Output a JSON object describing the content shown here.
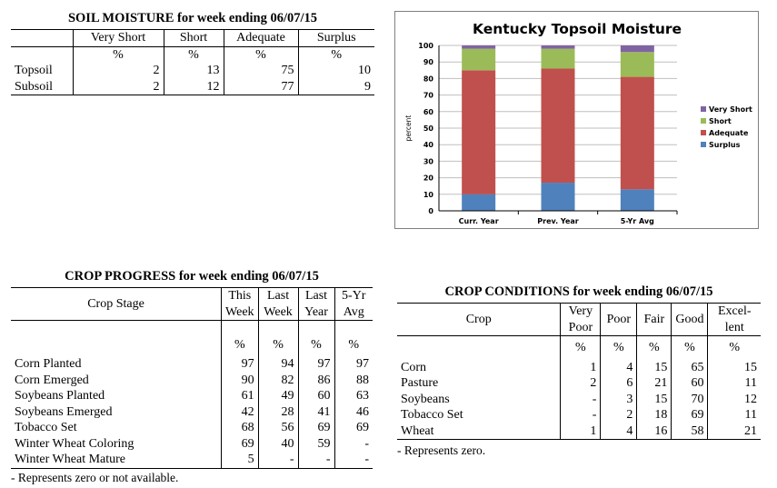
{
  "soil": {
    "title": "SOIL MOISTURE for week ending 06/07/15",
    "headers": [
      "Very Short",
      "Short",
      "Adequate",
      "Surplus"
    ],
    "unit": "%",
    "rows": [
      {
        "label": "Topsoil",
        "values": [
          "2",
          "13",
          "75",
          "10"
        ]
      },
      {
        "label": "Subsoil",
        "values": [
          "2",
          "12",
          "77",
          "9"
        ]
      }
    ]
  },
  "progress": {
    "title": "CROP PROGRESS for week ending 06/07/15",
    "stage_header": "Crop Stage",
    "headers": [
      [
        "This",
        "Week"
      ],
      [
        "Last",
        "Week"
      ],
      [
        "Last",
        "Year"
      ],
      [
        "5-Yr",
        "Avg"
      ]
    ],
    "unit": "%",
    "rows": [
      {
        "label": "Corn Planted",
        "values": [
          "97",
          "94",
          "97",
          "97"
        ]
      },
      {
        "label": "Corn Emerged",
        "values": [
          "90",
          "82",
          "86",
          "88"
        ]
      },
      {
        "label": "Soybeans Planted",
        "values": [
          "61",
          "49",
          "60",
          "63"
        ]
      },
      {
        "label": "Soybeans Emerged",
        "values": [
          "42",
          "28",
          "41",
          "46"
        ]
      },
      {
        "label": "Tobacco Set",
        "values": [
          "68",
          "56",
          "69",
          "69"
        ]
      },
      {
        "label": "Winter Wheat Coloring",
        "values": [
          "69",
          "40",
          "59",
          "-"
        ]
      },
      {
        "label": "Winter Wheat Mature",
        "values": [
          "5",
          "-",
          "-",
          "-"
        ]
      }
    ],
    "note": "- Represents zero or not available."
  },
  "conditions": {
    "title": "CROP CONDITIONS for week ending 06/07/15",
    "crop_header": "Crop",
    "headers": [
      [
        "Very",
        "Poor"
      ],
      [
        "Poor"
      ],
      [
        "Fair"
      ],
      [
        "Good"
      ],
      [
        "Excel-",
        "lent"
      ]
    ],
    "unit": "%",
    "rows": [
      {
        "label": "Corn",
        "values": [
          "1",
          "4",
          "15",
          "65",
          "15"
        ]
      },
      {
        "label": "Pasture",
        "values": [
          "2",
          "6",
          "21",
          "60",
          "11"
        ]
      },
      {
        "label": "Soybeans",
        "values": [
          "-",
          "3",
          "15",
          "70",
          "12"
        ]
      },
      {
        "label": "Tobacco Set",
        "values": [
          "-",
          "2",
          "18",
          "69",
          "11"
        ]
      },
      {
        "label": "Wheat",
        "values": [
          "1",
          "4",
          "16",
          "58",
          "21"
        ]
      }
    ],
    "note": "- Represents zero."
  },
  "chart_data": {
    "type": "bar",
    "stacked": true,
    "title": "Kentucky Topsoil Moisture",
    "ylabel": "percent",
    "xlabel": "",
    "ylim": [
      0,
      100
    ],
    "yticks": [
      0,
      10,
      20,
      30,
      40,
      50,
      60,
      70,
      80,
      90,
      100
    ],
    "categories": [
      "Curr. Year",
      "Prev. Year",
      "5-Yr Avg"
    ],
    "series": [
      {
        "name": "Surplus",
        "color": "#4f81bd",
        "values": [
          10,
          17,
          13
        ]
      },
      {
        "name": "Adequate",
        "color": "#c0504d",
        "values": [
          75,
          69,
          68
        ]
      },
      {
        "name": "Short",
        "color": "#9bbb59",
        "values": [
          13,
          12,
          15
        ]
      },
      {
        "name": "Very Short",
        "color": "#8064a2",
        "values": [
          2,
          2,
          4
        ]
      }
    ],
    "legend_order": [
      "Very Short",
      "Short",
      "Adequate",
      "Surplus"
    ],
    "legend_position": "right",
    "grid": true
  }
}
